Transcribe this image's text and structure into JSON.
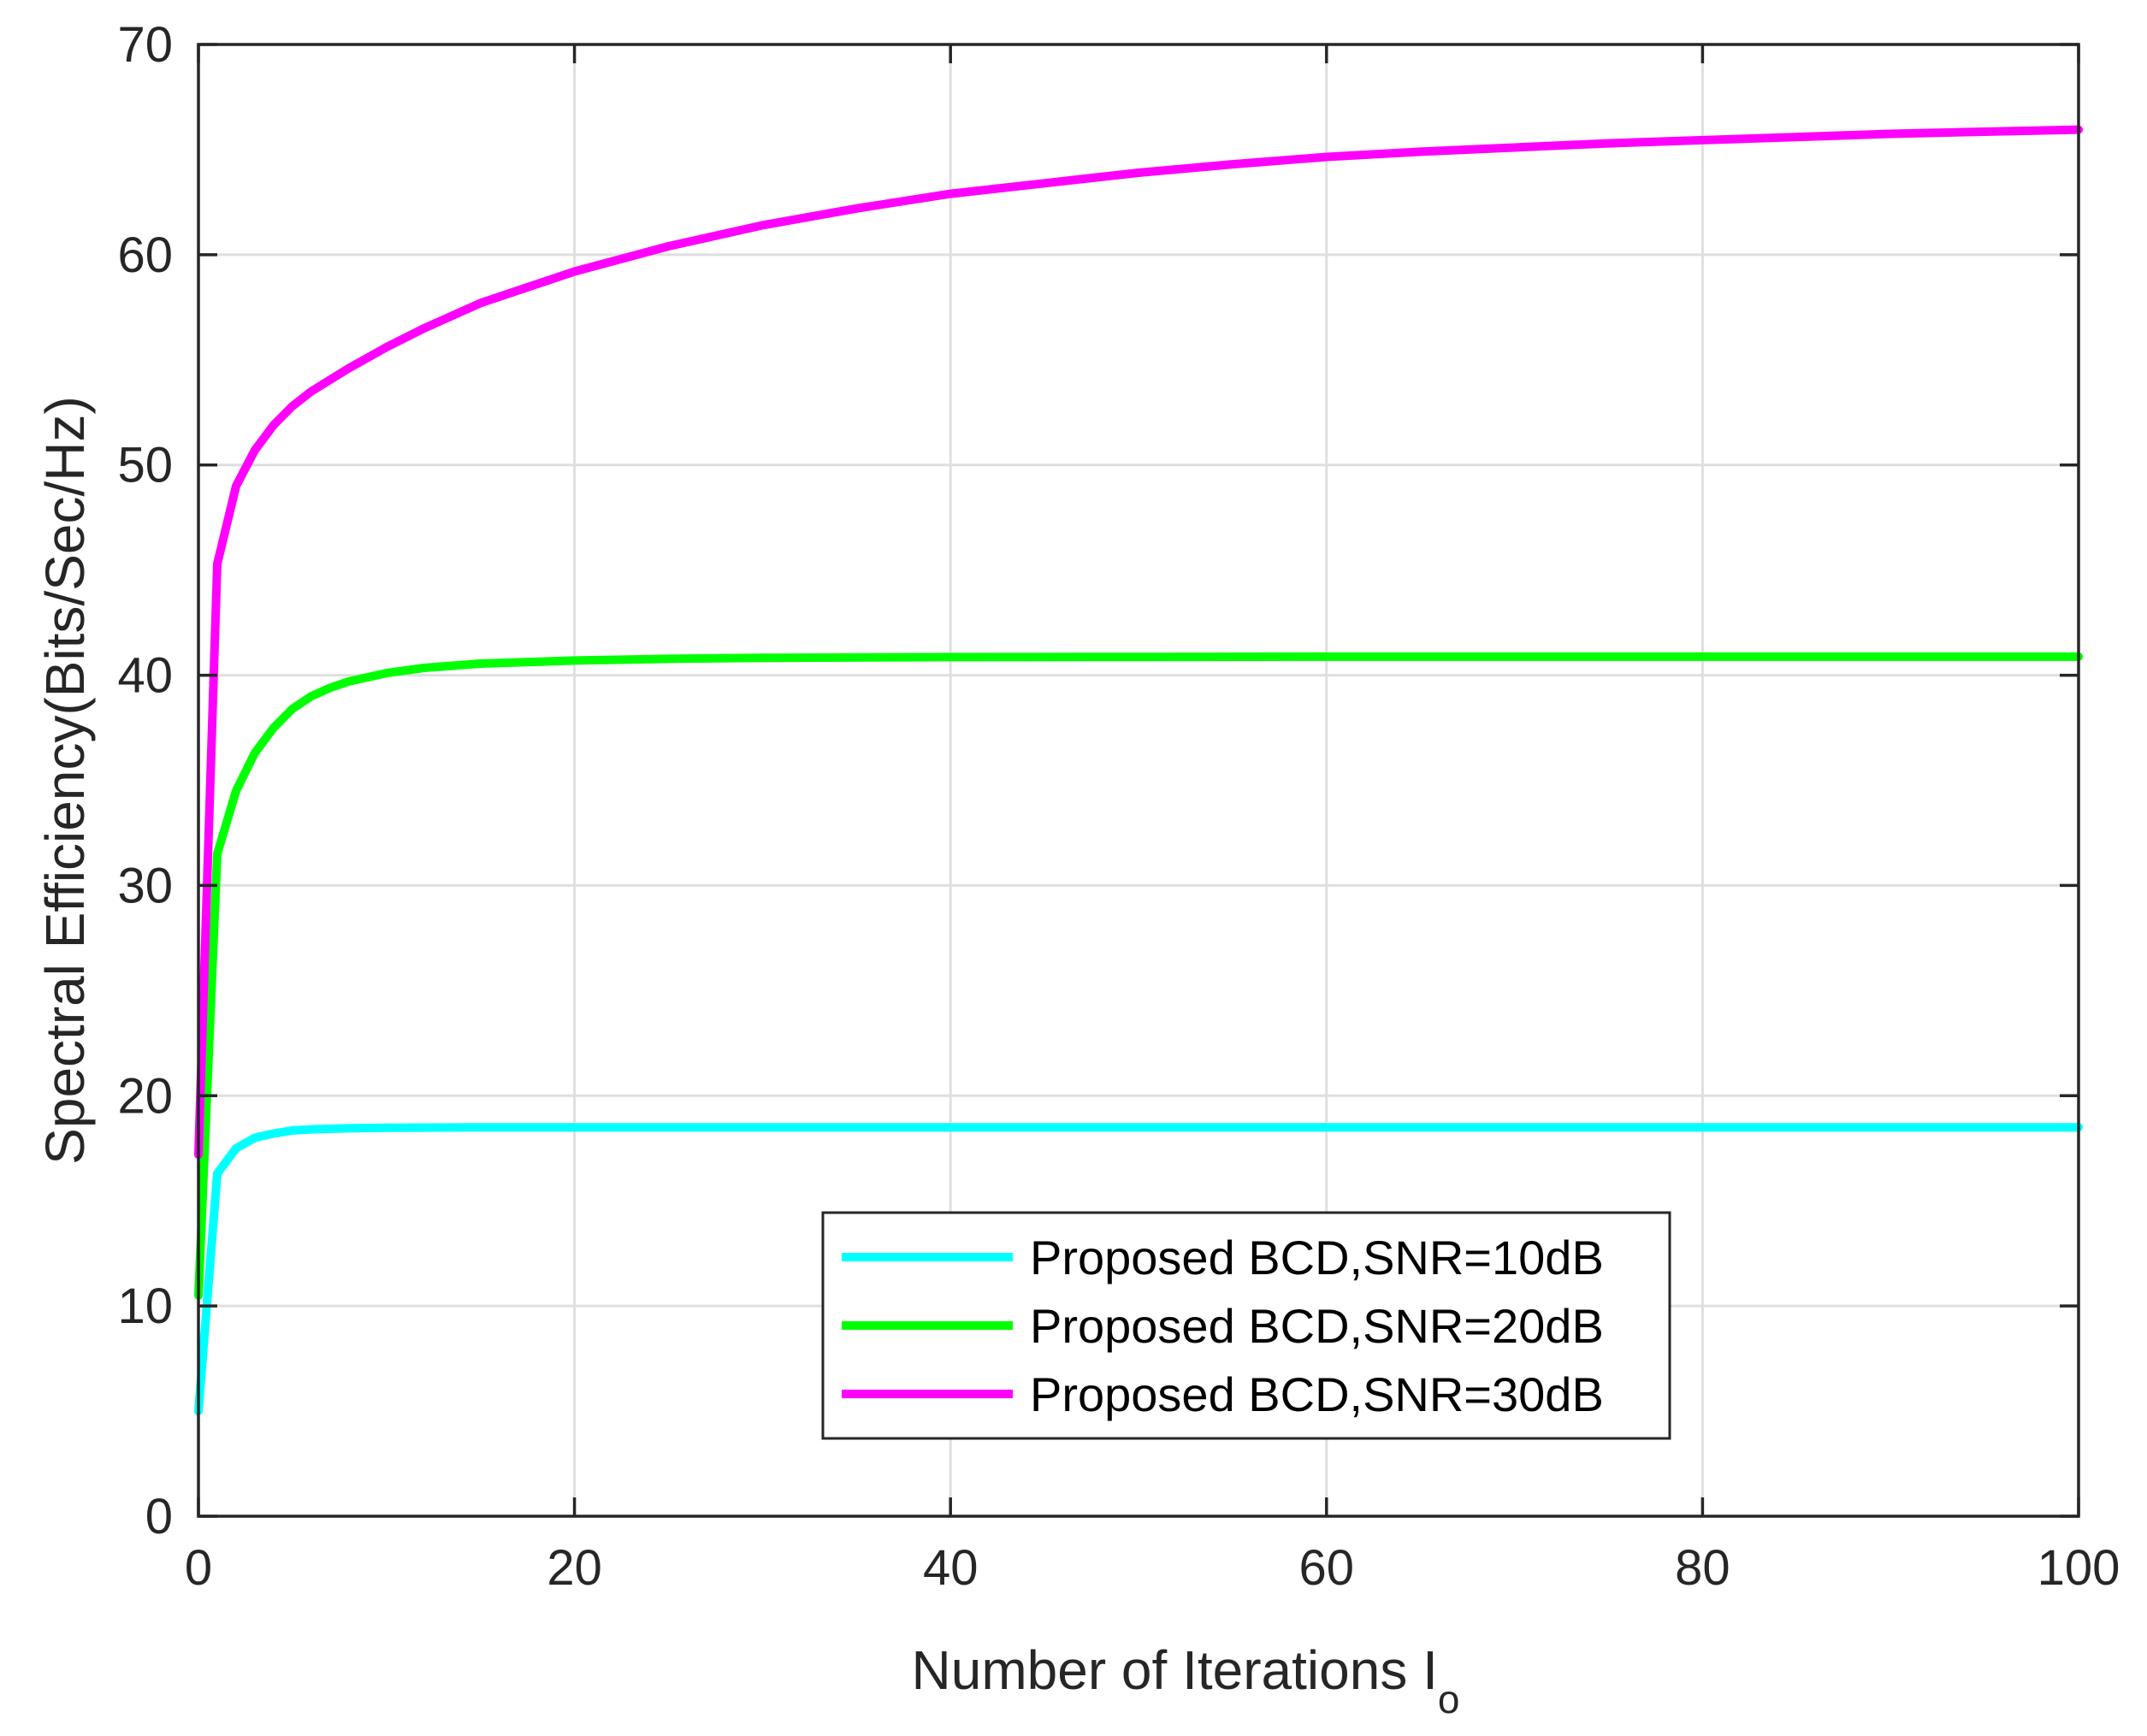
{
  "chart_data": {
    "type": "line",
    "title": "",
    "xlabel": "Number of Iterations I",
    "xlabel_subscript": "o",
    "ylabel": "Spectral Efficiency(Bits/Sec/Hz)",
    "xlim": [
      0,
      100
    ],
    "ylim": [
      0,
      70
    ],
    "xticks": [
      0,
      20,
      40,
      60,
      80,
      100
    ],
    "yticks": [
      0,
      10,
      20,
      30,
      40,
      50,
      60,
      70
    ],
    "grid": true,
    "legend_position": "lower-center",
    "series": [
      {
        "name": "Proposed BCD,SNR=10dB",
        "color": "#00FFFF",
        "x": [
          0,
          1,
          2,
          3,
          4,
          5,
          6,
          8,
          10,
          15,
          20,
          30,
          40,
          50,
          60,
          70,
          80,
          90,
          100
        ],
        "values": [
          5.0,
          16.3,
          17.5,
          18.0,
          18.2,
          18.35,
          18.4,
          18.45,
          18.48,
          18.5,
          18.5,
          18.5,
          18.5,
          18.5,
          18.5,
          18.5,
          18.5,
          18.5,
          18.5
        ]
      },
      {
        "name": "Proposed BCD,SNR=20dB",
        "color": "#00FF00",
        "x": [
          0,
          1,
          2,
          3,
          4,
          5,
          6,
          7,
          8,
          10,
          12,
          15,
          20,
          25,
          30,
          40,
          50,
          60,
          70,
          80,
          90,
          100
        ],
        "values": [
          10.5,
          31.5,
          34.5,
          36.3,
          37.5,
          38.4,
          39.0,
          39.4,
          39.7,
          40.1,
          40.35,
          40.55,
          40.7,
          40.78,
          40.83,
          40.86,
          40.87,
          40.88,
          40.88,
          40.88,
          40.88,
          40.88
        ]
      },
      {
        "name": "Proposed BCD,SNR=30dB",
        "color": "#FF00FF",
        "x": [
          0,
          1,
          2,
          3,
          4,
          5,
          6,
          8,
          10,
          12,
          15,
          20,
          25,
          30,
          35,
          40,
          45,
          50,
          55,
          60,
          65,
          70,
          75,
          80,
          85,
          90,
          95,
          100
        ],
        "values": [
          17.2,
          45.3,
          49.0,
          50.7,
          51.9,
          52.8,
          53.5,
          54.6,
          55.6,
          56.5,
          57.7,
          59.2,
          60.4,
          61.4,
          62.2,
          62.9,
          63.4,
          63.9,
          64.3,
          64.65,
          64.9,
          65.1,
          65.3,
          65.45,
          65.6,
          65.75,
          65.85,
          65.95
        ]
      }
    ]
  }
}
